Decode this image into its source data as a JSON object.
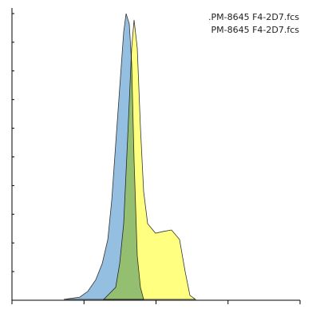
{
  "chart_data": {
    "type": "area",
    "log_x": true,
    "xlim": [
      1,
      10000
    ],
    "xticks": [
      1,
      10,
      100,
      1000,
      10000
    ],
    "ylim": [
      0,
      100
    ],
    "yticks": [
      0,
      10,
      20,
      30,
      40,
      50,
      60,
      70,
      80,
      90,
      100
    ],
    "legend": "top-right",
    "series": [
      {
        "name": ".PM-8645 F4-2D7.fcs",
        "color": "#94bfe0",
        "x": [
          5.25,
          8.75,
          11.3,
          14.6,
          17.9,
          21.4,
          24.3,
          27.6,
          31.3,
          35.6,
          38.4,
          42.5,
          45.9,
          49.6,
          54.9,
          60.8,
          67.3
        ],
        "values": [
          0.3,
          1.1,
          3.1,
          7.2,
          12.8,
          21.2,
          35.1,
          54.6,
          74.1,
          93.6,
          100,
          96.4,
          82.5,
          49.0,
          15.6,
          4.5,
          0.3
        ]
      },
      {
        "name": "PM-8645 F4-2D7.fcs",
        "color": "#ffff80",
        "x": [
          18.8,
          27.6,
          31.3,
          35.6,
          40.5,
          45.9,
          49.6,
          54.9,
          60.8,
          67.3,
          76.5,
          98.6,
          127,
          164,
          212,
          254,
          296,
          353
        ],
        "values": [
          0.3,
          4.5,
          12.8,
          26.7,
          57.4,
          88.0,
          97.8,
          88.0,
          60.2,
          37.9,
          26.7,
          23.4,
          24.0,
          24.5,
          21.2,
          10.0,
          1.7,
          0.3
        ]
      }
    ]
  }
}
